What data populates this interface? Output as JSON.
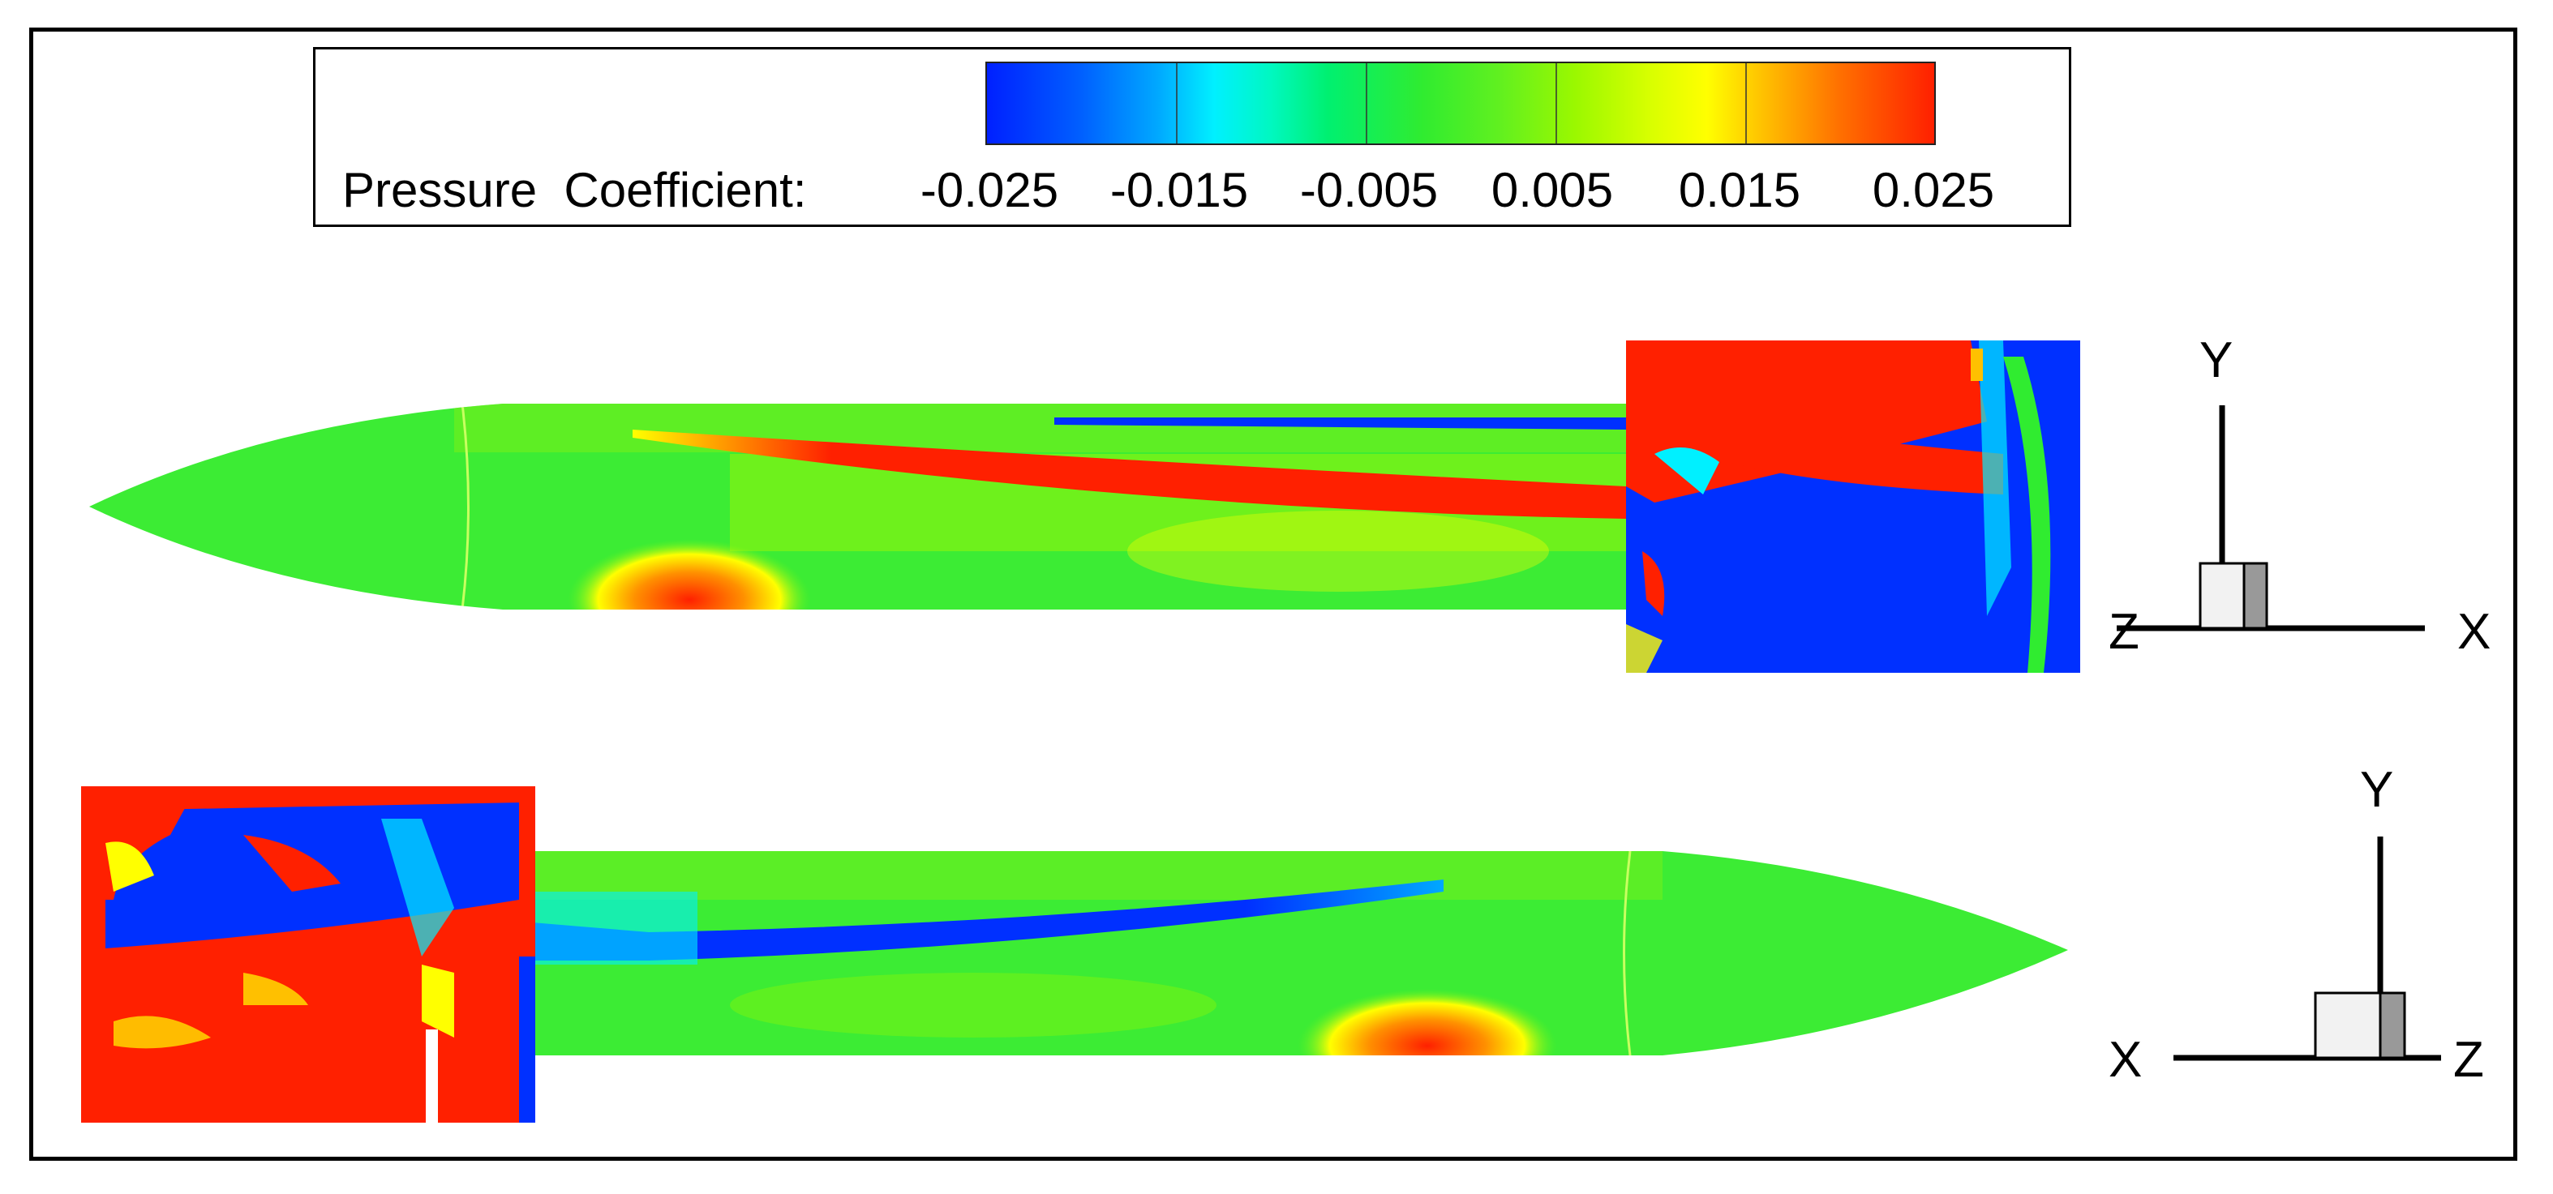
{
  "legend": {
    "title": "Pressure  Coefficient:",
    "ticks": [
      "-0.025",
      "-0.015",
      "-0.005",
      "0.005",
      "0.015",
      "0.025"
    ],
    "colors": {
      "min": "#0020ff",
      "mid_low": "#00f0ff",
      "mid": "#30ec30",
      "mid_high": "#ffff00",
      "max": "#ff2000"
    }
  },
  "axes_top": {
    "y": "Y",
    "x": "X",
    "z": "Z"
  },
  "axes_bottom": {
    "y": "Y",
    "x": "X",
    "z": "Z"
  }
}
